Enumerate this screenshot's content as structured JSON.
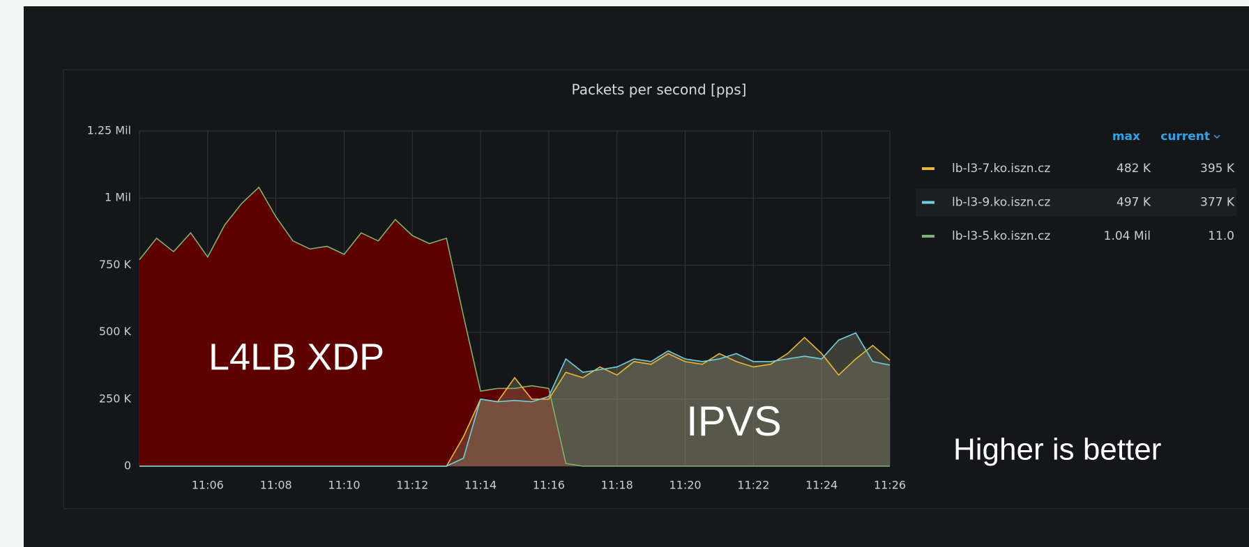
{
  "chart_data": {
    "type": "line",
    "title": "Packets per second [pps]",
    "x": [
      4,
      4.5,
      5,
      5.5,
      6,
      6.5,
      7,
      7.5,
      8,
      8.5,
      9,
      9.5,
      10,
      10.5,
      11,
      11.5,
      12,
      12.5,
      13,
      13.5,
      14,
      14.5,
      15,
      15.5,
      16,
      16.5,
      17,
      17.5,
      18,
      18.5,
      19,
      19.5,
      20,
      20.5,
      21,
      21.5,
      22,
      22.5,
      23,
      23.5,
      24,
      24.5,
      25,
      25.5,
      26
    ],
    "series": [
      {
        "name": "lb-l3-7.ko.iszn.cz",
        "color": "#eab839",
        "fill_color": "#8a8a6e",
        "values": [
          0,
          0,
          0,
          0,
          0,
          0,
          0,
          0,
          0,
          0,
          0,
          0,
          0,
          0,
          0,
          0,
          0,
          0,
          0,
          110000,
          250000,
          240000,
          330000,
          250000,
          250000,
          350000,
          330000,
          370000,
          340000,
          390000,
          380000,
          420000,
          390000,
          380000,
          420000,
          390000,
          370000,
          380000,
          420000,
          480000,
          420000,
          340000,
          400000,
          450000,
          395000
        ],
        "legend": {
          "max": {
            "value": 482000,
            "label": "482 K"
          },
          "current": {
            "value": 395000,
            "label": "395 K"
          }
        }
      },
      {
        "name": "lb-l3-9.ko.iszn.cz",
        "color": "#6ed0e0",
        "fill_color": "#8a8a6e",
        "values": [
          0,
          0,
          0,
          0,
          0,
          0,
          0,
          0,
          0,
          0,
          0,
          0,
          0,
          0,
          0,
          0,
          0,
          0,
          0,
          30000,
          250000,
          240000,
          245000,
          240000,
          260000,
          400000,
          350000,
          360000,
          370000,
          400000,
          390000,
          430000,
          400000,
          390000,
          400000,
          420000,
          390000,
          390000,
          400000,
          410000,
          400000,
          470000,
          497000,
          390000,
          377000
        ],
        "legend": {
          "max": {
            "value": 497000,
            "label": "497 K"
          },
          "current": {
            "value": 377000,
            "label": "377 K"
          }
        }
      },
      {
        "name": "lb-l3-5.ko.iszn.cz",
        "color": "#7eb26d",
        "fill_color": "#5c0000",
        "values": [
          770000,
          850000,
          800000,
          870000,
          780000,
          900000,
          980000,
          1040000,
          930000,
          840000,
          810000,
          820000,
          790000,
          870000,
          840000,
          920000,
          860000,
          830000,
          850000,
          560000,
          280000,
          290000,
          290000,
          300000,
          290000,
          10000,
          0,
          0,
          0,
          0,
          0,
          0,
          0,
          0,
          0,
          0,
          0,
          0,
          0,
          0,
          0,
          0,
          0,
          0,
          11
        ],
        "legend": {
          "max": {
            "value": 1040000,
            "label": "1.04 Mil"
          },
          "current": {
            "value": 11,
            "label": "11.0"
          }
        }
      }
    ],
    "legend_headers": [
      "max",
      "current"
    ],
    "xlim": [
      4,
      26
    ],
    "xticks": [
      {
        "value": 6,
        "label": "11:06"
      },
      {
        "value": 8,
        "label": "11:08"
      },
      {
        "value": 10,
        "label": "11:10"
      },
      {
        "value": 12,
        "label": "11:12"
      },
      {
        "value": 14,
        "label": "11:14"
      },
      {
        "value": 16,
        "label": "11:16"
      },
      {
        "value": 18,
        "label": "11:18"
      },
      {
        "value": 20,
        "label": "11:20"
      },
      {
        "value": 22,
        "label": "11:22"
      },
      {
        "value": 24,
        "label": "11:24"
      },
      {
        "value": 26,
        "label": "11:26"
      }
    ],
    "ylim": [
      0,
      1250000
    ],
    "yticks": [
      0,
      {
        "value": 250000,
        "label": "250 K"
      },
      {
        "value": 500000,
        "label": "500 K"
      },
      {
        "value": 750000,
        "label": "750 K"
      },
      {
        "value": 1000000,
        "label": "1 Mil"
      },
      {
        "value": 1250000,
        "label": "1.25 Mil"
      }
    ],
    "grid": true,
    "annotations": [
      "L4LB XDP",
      "IPVS",
      "Higher is better"
    ]
  }
}
